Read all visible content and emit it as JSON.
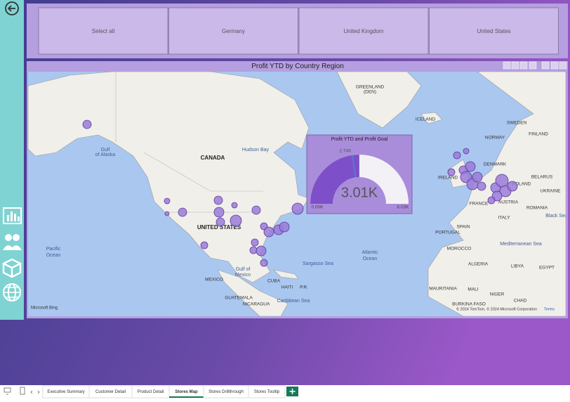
{
  "slicer": {
    "items": [
      "Select all",
      "Germany",
      "United Kingdom",
      "United States"
    ]
  },
  "map_visual": {
    "title": "Profit YTD by Country Region",
    "labels": [
      "GREENLAND",
      "(DEN)",
      "ICELAND",
      "SWEDEN",
      "FINLAND",
      "NORWAY",
      "Gulf",
      "of Alaska",
      "Hudson Bay",
      "CANADA",
      "DENMARK",
      "BELARUS",
      "IRELAND",
      "POLAND",
      "UKRAINE",
      "FRANCE",
      "AUSTRIA",
      "ROMANIA",
      "UNITED STATES",
      "SPAIN",
      "PORTUGAL",
      "ITALY",
      "Black Sea",
      "Pacific",
      "Ocean",
      "Atlantic",
      "Ocean",
      "MOROCCO",
      "Mediterranean Sea",
      "Sargasso Sea",
      "Gulf of",
      "Mexico",
      "ALGERIA",
      "LIBYA",
      "EGYPT",
      "MEXICO",
      "CUBA",
      "HAITI",
      "P.R.",
      "MAURITANIA",
      "MALI",
      "NIGER",
      "GUATEMALA",
      "Caribbean Sea",
      "CHAD",
      "NICARAGUA",
      "BURKINA FASO"
    ],
    "bing": "Microsoft Bing",
    "attribution": "© 2024 TomTom, © 2024 Microsoft Corporation",
    "terms": "Terms"
  },
  "gauge": {
    "title": "Profit YTD and Profit Goal",
    "min": 0,
    "max": 6030,
    "value": 3010,
    "target": 2740,
    "min_label": "0.00K",
    "max_label": "6.03K",
    "value_label": "3.01K",
    "target_label": "2.74K"
  },
  "tabs": [
    "Executive Summary",
    "Customer Detail",
    "Product Detail",
    "Stores Map",
    "Stores Drillthrough",
    "Stores Tooltip"
  ]
}
